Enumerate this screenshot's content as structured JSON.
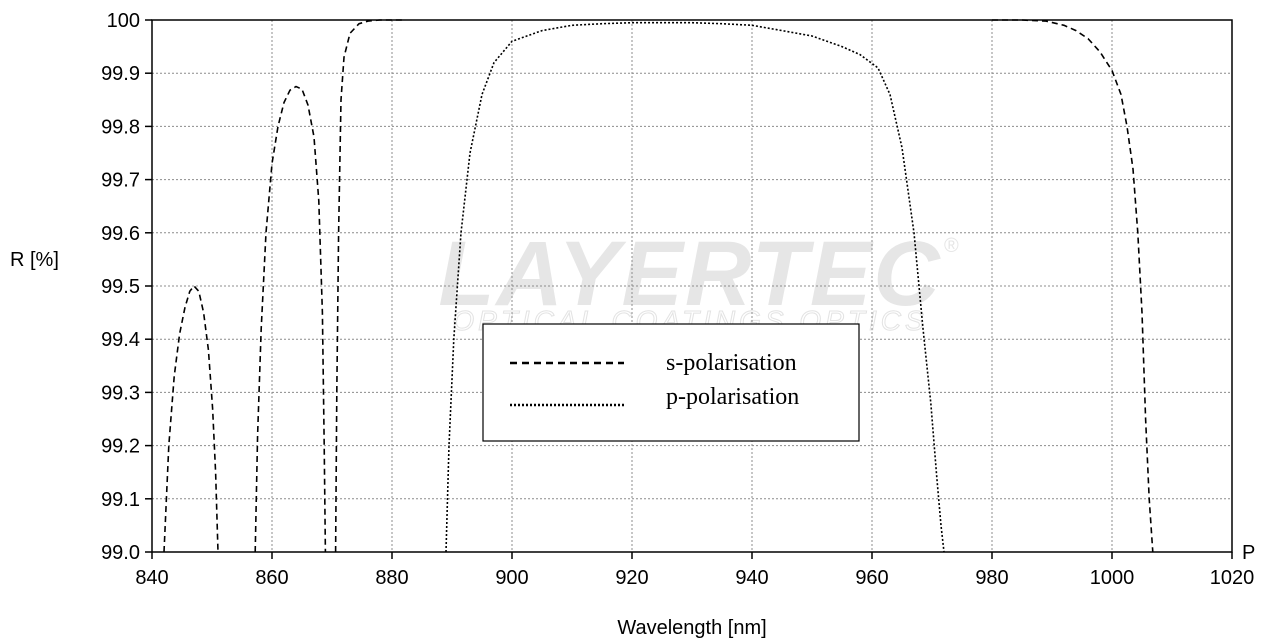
{
  "chart_data": {
    "type": "line",
    "title": "",
    "xlabel": "Wavelength [nm]",
    "ylabel": "R [%]",
    "x_axis_end_marker": "P",
    "xlim": [
      840,
      1020
    ],
    "ylim": [
      99.0,
      100.0
    ],
    "x_ticks": [
      840,
      860,
      880,
      900,
      920,
      940,
      960,
      980,
      1000,
      1020
    ],
    "x_tick_labels": [
      "840",
      "860",
      "880",
      "900",
      "920",
      "940",
      "960",
      "980",
      "1000",
      "1020"
    ],
    "y_ticks": [
      99.0,
      99.1,
      99.2,
      99.3,
      99.4,
      99.5,
      99.6,
      99.7,
      99.8,
      99.9,
      100.0
    ],
    "y_tick_labels": [
      "99.0",
      "99.1",
      "99.2",
      "99.3",
      "99.4",
      "99.5",
      "99.6",
      "99.7",
      "99.8",
      "99.9",
      "100"
    ],
    "grid": true,
    "legend_position": "center",
    "series": [
      {
        "name": "s-polarisation",
        "style": "dashed",
        "color": "#000000",
        "segments": [
          [
            [
              842.0,
              99.0
            ],
            [
              842.8,
              99.2
            ],
            [
              843.7,
              99.33
            ],
            [
              844.6,
              99.41
            ],
            [
              845.5,
              99.46
            ],
            [
              846.3,
              99.49
            ],
            [
              847.0,
              99.5
            ],
            [
              847.8,
              99.49
            ],
            [
              848.6,
              99.45
            ],
            [
              849.4,
              99.38
            ],
            [
              850.1,
              99.27
            ],
            [
              850.6,
              99.15
            ],
            [
              851.0,
              99.0
            ]
          ],
          [
            [
              857.2,
              99.0
            ],
            [
              857.6,
              99.22
            ],
            [
              858.2,
              99.42
            ],
            [
              859.0,
              99.6
            ],
            [
              860.0,
              99.73
            ],
            [
              861.0,
              99.8
            ],
            [
              862.0,
              99.845
            ],
            [
              863.0,
              99.868
            ],
            [
              864.0,
              99.875
            ],
            [
              865.0,
              99.87
            ],
            [
              866.0,
              99.84
            ],
            [
              867.0,
              99.78
            ],
            [
              867.8,
              99.66
            ],
            [
              868.4,
              99.45
            ],
            [
              868.7,
              99.2
            ],
            [
              868.9,
              99.0
            ]
          ],
          [
            [
              870.6,
              99.0
            ],
            [
              870.8,
              99.3
            ],
            [
              871.1,
              99.6
            ],
            [
              871.5,
              99.85
            ],
            [
              872.0,
              99.93
            ],
            [
              873.0,
              99.975
            ],
            [
              874.5,
              99.993
            ],
            [
              876.0,
              99.998
            ],
            [
              878.0,
              100.0
            ],
            [
              880.0,
              100.0
            ],
            [
              882.0,
              100.0
            ]
          ]
        ]
      },
      {
        "name": "",
        "style": "dashed",
        "color": "#000000",
        "segments": [
          [
            [
              980.0,
              100.0
            ],
            [
              985.0,
              100.0
            ],
            [
              989.0,
              99.998
            ],
            [
              992.0,
              99.99
            ],
            [
              994.0,
              99.98
            ],
            [
              996.0,
              99.965
            ],
            [
              998.0,
              99.94
            ],
            [
              1000.0,
              99.905
            ],
            [
              1001.5,
              99.86
            ],
            [
              1002.5,
              99.8
            ],
            [
              1003.5,
              99.72
            ],
            [
              1004.3,
              99.6
            ],
            [
              1005.0,
              99.45
            ],
            [
              1005.6,
              99.25
            ],
            [
              1006.2,
              99.1
            ],
            [
              1006.8,
              99.0
            ]
          ]
        ]
      },
      {
        "name": "p-polarisation",
        "style": "dotted",
        "color": "#000000",
        "segments": [
          [
            [
              889.0,
              99.0
            ],
            [
              889.5,
              99.2
            ],
            [
              890.3,
              99.4
            ],
            [
              891.5,
              99.6
            ],
            [
              893.0,
              99.75
            ],
            [
              895.0,
              99.86
            ],
            [
              897.0,
              99.92
            ],
            [
              900.0,
              99.96
            ],
            [
              905.0,
              99.98
            ],
            [
              910.0,
              99.99
            ],
            [
              915.0,
              99.993
            ],
            [
              920.0,
              99.995
            ],
            [
              925.0,
              99.995
            ],
            [
              930.0,
              99.995
            ],
            [
              935.0,
              99.993
            ],
            [
              940.0,
              99.99
            ],
            [
              945.0,
              99.98
            ],
            [
              950.0,
              99.97
            ],
            [
              955.0,
              99.95
            ],
            [
              958.0,
              99.935
            ],
            [
              961.0,
              99.91
            ],
            [
              963.0,
              99.86
            ],
            [
              965.0,
              99.76
            ],
            [
              967.0,
              99.6
            ],
            [
              968.5,
              99.42
            ],
            [
              969.8,
              99.28
            ],
            [
              970.8,
              99.14
            ],
            [
              971.5,
              99.05
            ],
            [
              972.0,
              99.0
            ]
          ]
        ]
      }
    ],
    "legend_entries": [
      {
        "label": "s-polarisation",
        "style": "dashed"
      },
      {
        "label": "p-polarisation",
        "style": "dotted"
      }
    ],
    "watermark": {
      "main": "LAYERTEC",
      "sub": "OPTICAL COATINGS  OPTICS",
      "mark": "®"
    }
  }
}
